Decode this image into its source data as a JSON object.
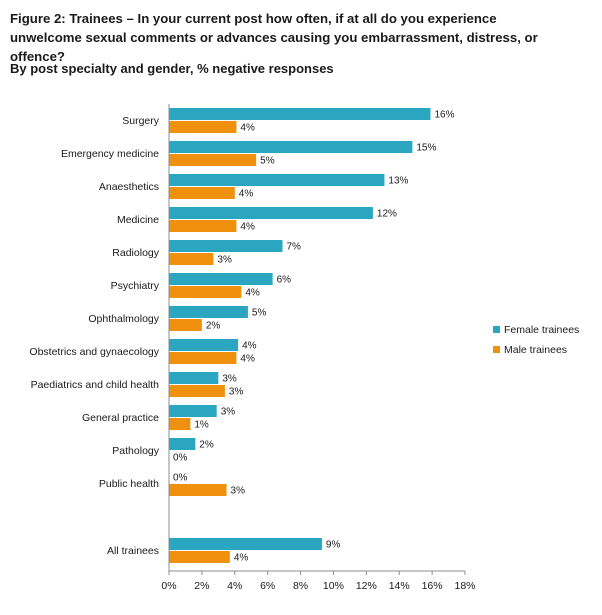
{
  "title": "Figure 2: Trainees – In your current post how often, if at all do you experience unwelcome sexual comments or advances causing you embarrassment, distress, or offence?",
  "subtitle": "By post specialty and gender, % negative responses",
  "colors": {
    "female": "#2aa6c1",
    "male": "#f0900f",
    "axis": "#8c8c8c"
  },
  "chart_data": {
    "type": "bar",
    "orientation": "horizontal",
    "categories": [
      "Surgery",
      "Emergency medicine",
      "Anaesthetics",
      "Medicine",
      "Radiology",
      "Psychiatry",
      "Ophthalmology",
      "Obstetrics and gynaecology",
      "Paediatrics and child health",
      "General practice",
      "Pathology",
      "Public health",
      "All trainees"
    ],
    "series": [
      {
        "name": "Female trainees",
        "values": [
          16,
          15,
          13,
          12,
          7,
          6,
          5,
          4,
          3,
          3,
          2,
          0,
          9
        ],
        "actual": [
          15.9,
          14.8,
          13.1,
          12.4,
          6.9,
          6.3,
          4.8,
          4.2,
          3.0,
          2.9,
          1.6,
          0,
          9.3
        ]
      },
      {
        "name": "Male trainees",
        "values": [
          4,
          5,
          4,
          4,
          3,
          4,
          2,
          4,
          3,
          1,
          0,
          3,
          4
        ],
        "actual": [
          4.1,
          5.3,
          4.0,
          4.1,
          2.7,
          4.4,
          2.0,
          4.1,
          3.4,
          1.3,
          0,
          3.5,
          3.7
        ]
      }
    ],
    "xticks": [
      "0%",
      "2%",
      "4%",
      "6%",
      "8%",
      "10%",
      "12%",
      "14%",
      "16%",
      "18%"
    ],
    "xlim": [
      0,
      18
    ],
    "legend_position": "right",
    "grid": false
  }
}
